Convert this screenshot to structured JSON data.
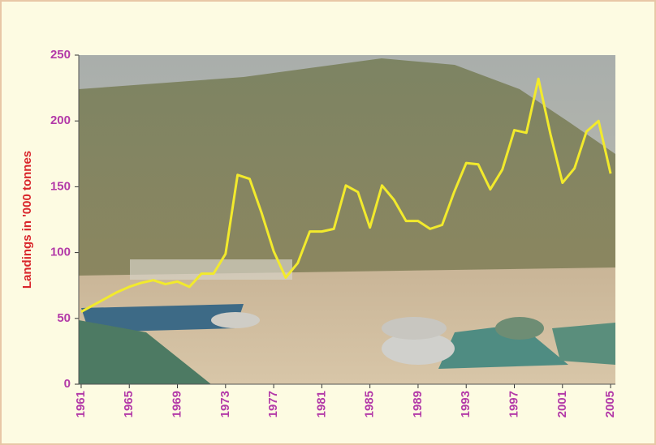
{
  "chart_data": {
    "type": "line",
    "y_label": "Landings in '000 tonnes",
    "x": [
      1961,
      1962,
      1963,
      1964,
      1965,
      1966,
      1967,
      1968,
      1969,
      1970,
      1971,
      1972,
      1973,
      1974,
      1975,
      1976,
      1977,
      1978,
      1979,
      1980,
      1981,
      1982,
      1983,
      1984,
      1985,
      1986,
      1987,
      1988,
      1989,
      1990,
      1991,
      1992,
      1993,
      1994,
      1995,
      1996,
      1997,
      1998,
      1999,
      2000,
      2001,
      2002,
      2003,
      2004,
      2005
    ],
    "series": [
      {
        "color": "#f2ea2c",
        "values": [
          55,
          60,
          65,
          70,
          74,
          77,
          79,
          76,
          78,
          74,
          84,
          84,
          99,
          159,
          156,
          130,
          101,
          81,
          92,
          116,
          116,
          118,
          151,
          146,
          119,
          151,
          140,
          124,
          124,
          118,
          121,
          146,
          168,
          167,
          148,
          163,
          193,
          191,
          232,
          190,
          153,
          164,
          192,
          200,
          160
        ]
      }
    ],
    "xlim": [
      1960.8,
      2005.4
    ],
    "xticks": [
      1961,
      1965,
      1969,
      1973,
      1977,
      1981,
      1985,
      1989,
      1993,
      1997,
      2001,
      2005
    ],
    "ylim": [
      0,
      250
    ],
    "yticks": [
      0,
      50,
      100,
      150,
      200,
      250
    ]
  }
}
